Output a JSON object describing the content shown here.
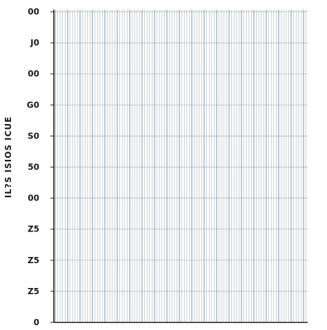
{
  "chart_data": {
    "type": "bar",
    "ylabel": "IL?S ISIOS ICUE",
    "y_tick_labels": [
      "00",
      "J0",
      "00",
      "G0",
      "S0",
      "50",
      "00",
      "Z5",
      "Z5",
      "Z5",
      "0"
    ],
    "grid": true,
    "colors": {
      "grid_line": "#6b7f93",
      "axis": "#1a1a1a",
      "background": "#ffffff"
    }
  }
}
